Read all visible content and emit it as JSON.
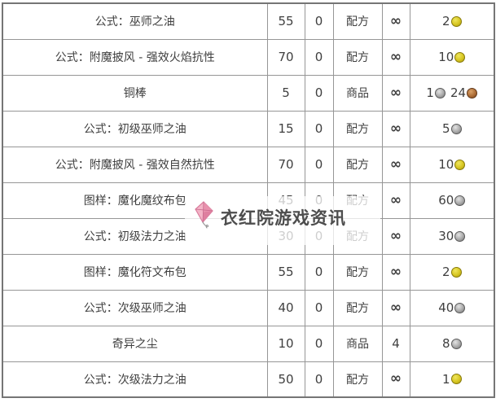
{
  "watermark": {
    "text": "衣红院游戏资讯",
    "icon": "kite-icon",
    "kite_color": "#f3b3c6"
  },
  "colors": {
    "gold_coin": "#d7c621",
    "silver_coin": "#a9a9a9",
    "copper_coin": "#ad6d36",
    "border": "#969696",
    "text": "#3f3f3f"
  },
  "table": {
    "rows": [
      {
        "name": "公式：巫师之油",
        "level": "55",
        "count": "0",
        "type": "配方",
        "stock": "∞",
        "price": [
          {
            "amount": "2",
            "coin": "gold"
          }
        ]
      },
      {
        "name": "公式：附魔披风 - 强效火焰抗性",
        "level": "70",
        "count": "0",
        "type": "配方",
        "stock": "∞",
        "price": [
          {
            "amount": "10",
            "coin": "gold"
          }
        ]
      },
      {
        "name": "铜棒",
        "level": "5",
        "count": "0",
        "type": "商品",
        "stock": "∞",
        "price": [
          {
            "amount": "1",
            "coin": "silver"
          },
          {
            "amount": "24",
            "coin": "copper"
          }
        ]
      },
      {
        "name": "公式：初级巫师之油",
        "level": "15",
        "count": "0",
        "type": "配方",
        "stock": "∞",
        "price": [
          {
            "amount": "5",
            "coin": "silver"
          }
        ]
      },
      {
        "name": "公式：附魔披风 - 强效自然抗性",
        "level": "70",
        "count": "0",
        "type": "配方",
        "stock": "∞",
        "price": [
          {
            "amount": "10",
            "coin": "gold"
          }
        ]
      },
      {
        "name": "图样：魔化魔纹布包",
        "level": "45",
        "count": "0",
        "type": "配方",
        "stock": "∞",
        "price": [
          {
            "amount": "60",
            "coin": "silver"
          }
        ]
      },
      {
        "name": "公式：初级法力之油",
        "level": "30",
        "count": "0",
        "type": "配方",
        "stock": "∞",
        "price": [
          {
            "amount": "30",
            "coin": "silver"
          }
        ]
      },
      {
        "name": "图样：魔化符文布包",
        "level": "55",
        "count": "0",
        "type": "配方",
        "stock": "∞",
        "price": [
          {
            "amount": "2",
            "coin": "gold"
          }
        ]
      },
      {
        "name": "公式：次级巫师之油",
        "level": "40",
        "count": "0",
        "type": "配方",
        "stock": "∞",
        "price": [
          {
            "amount": "40",
            "coin": "silver"
          }
        ]
      },
      {
        "name": "奇异之尘",
        "level": "10",
        "count": "0",
        "type": "商品",
        "stock": "4",
        "price": [
          {
            "amount": "8",
            "coin": "silver"
          }
        ]
      },
      {
        "name": "公式：次级法力之油",
        "level": "50",
        "count": "0",
        "type": "配方",
        "stock": "∞",
        "price": [
          {
            "amount": "1",
            "coin": "gold"
          }
        ]
      }
    ]
  }
}
